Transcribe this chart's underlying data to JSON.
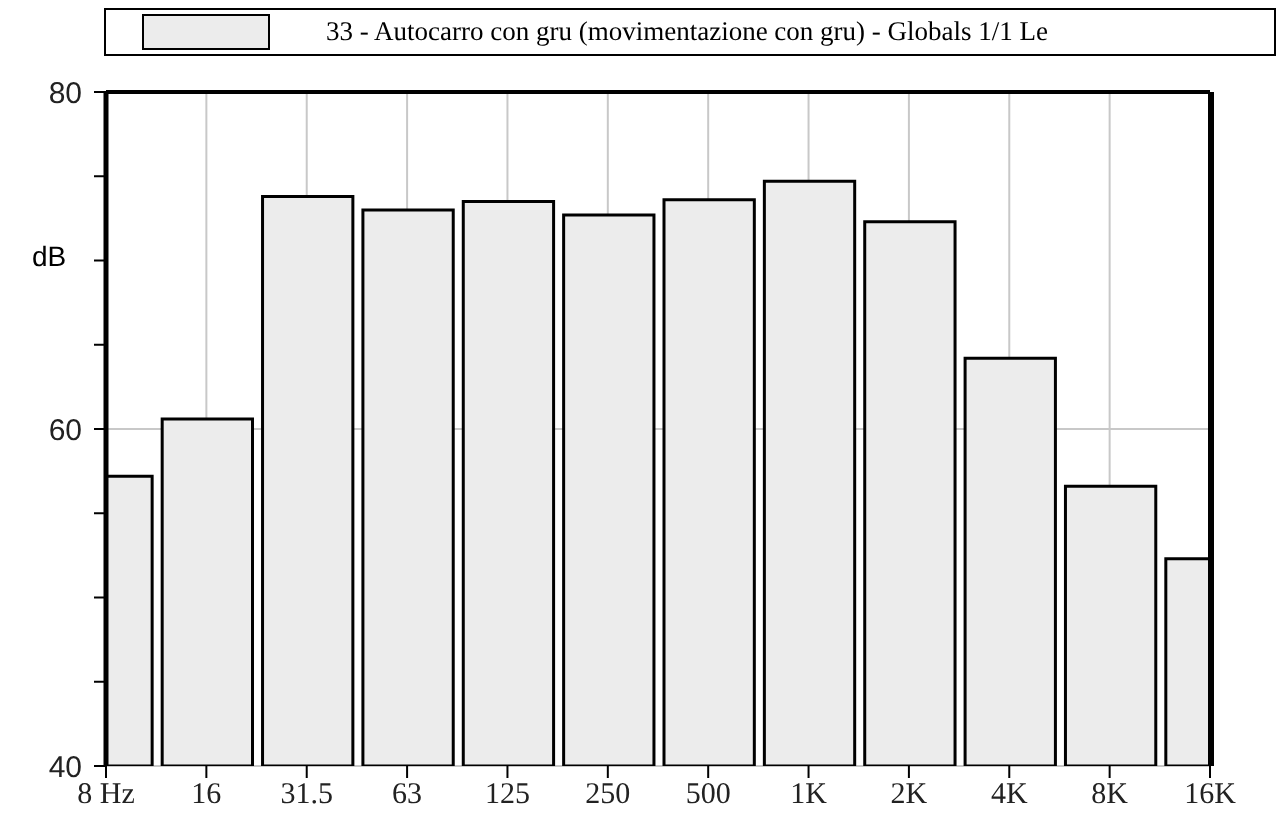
{
  "chart_data": {
    "type": "bar",
    "ylabel": "dB",
    "categories": [
      "8 Hz",
      "16",
      "31.5",
      "63",
      "125",
      "250",
      "500",
      "1K",
      "2K",
      "4K",
      "8K",
      "16K"
    ],
    "series": [
      {
        "name": "33 - Autocarro con gru (movimentazione con gru) - Globals 1/1 Le",
        "color": "#ececec",
        "values": [
          57.2,
          60.6,
          73.8,
          73.0,
          73.5,
          72.7,
          73.6,
          74.7,
          72.3,
          64.2,
          56.6,
          52.3
        ]
      }
    ],
    "ylim": [
      40,
      80
    ],
    "yticks": [
      40,
      {
        "value": 45,
        "label": null
      },
      {
        "value": 50,
        "label": null
      },
      {
        "value": 55,
        "label": null
      },
      60,
      {
        "value": 65,
        "label": null
      },
      {
        "value": 70,
        "label": null
      },
      {
        "value": 75,
        "label": null
      },
      80
    ],
    "grid": true,
    "legend": "top"
  }
}
